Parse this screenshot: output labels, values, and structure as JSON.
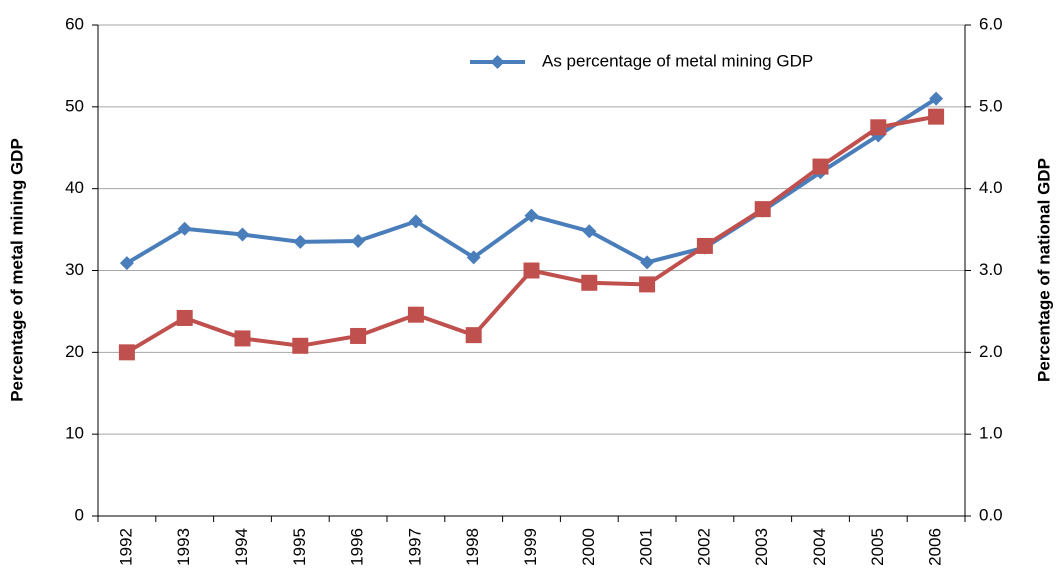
{
  "chart_data": {
    "type": "line",
    "categories": [
      "1992",
      "1993",
      "1994",
      "1995",
      "1996",
      "1997",
      "1998",
      "1999",
      "2000",
      "2001",
      "2002",
      "2003",
      "2004",
      "2005",
      "2006"
    ],
    "y_label": "Percentage of metal mining GDP",
    "y2_label": "Percentage of national GDP",
    "ylim": [
      0,
      60
    ],
    "yticks": [
      0,
      10,
      20,
      30,
      40,
      50,
      60
    ],
    "y2lim": [
      0,
      6
    ],
    "y2ticks": [
      {
        "value": 0,
        "label": "0.0"
      },
      {
        "value": 1,
        "label": "1.0"
      },
      {
        "value": 2,
        "label": "2.0"
      },
      {
        "value": 3,
        "label": "3.0"
      },
      {
        "value": 4,
        "label": "4.0"
      },
      {
        "value": 5,
        "label": "5.0"
      },
      {
        "value": 6,
        "label": "6.0"
      }
    ],
    "grid": true,
    "legend": "top-right",
    "series": [
      {
        "name": "As percentage of metal mining GDP",
        "color": "#4a7ebb",
        "marker": "diamond",
        "values": [
          30.9,
          35.1,
          34.4,
          33.5,
          33.6,
          36.0,
          31.6,
          36.7,
          34.8,
          31.0,
          32.8,
          37.3,
          42.0,
          46.5,
          51.0
        ]
      },
      {
        "color": "#c0504d",
        "marker": "square",
        "axis": "y2",
        "values": [
          2.0,
          2.42,
          2.17,
          2.08,
          2.2,
          2.46,
          2.21,
          3.0,
          2.85,
          2.83,
          3.3,
          3.75,
          4.27,
          4.75,
          4.88
        ]
      }
    ]
  }
}
